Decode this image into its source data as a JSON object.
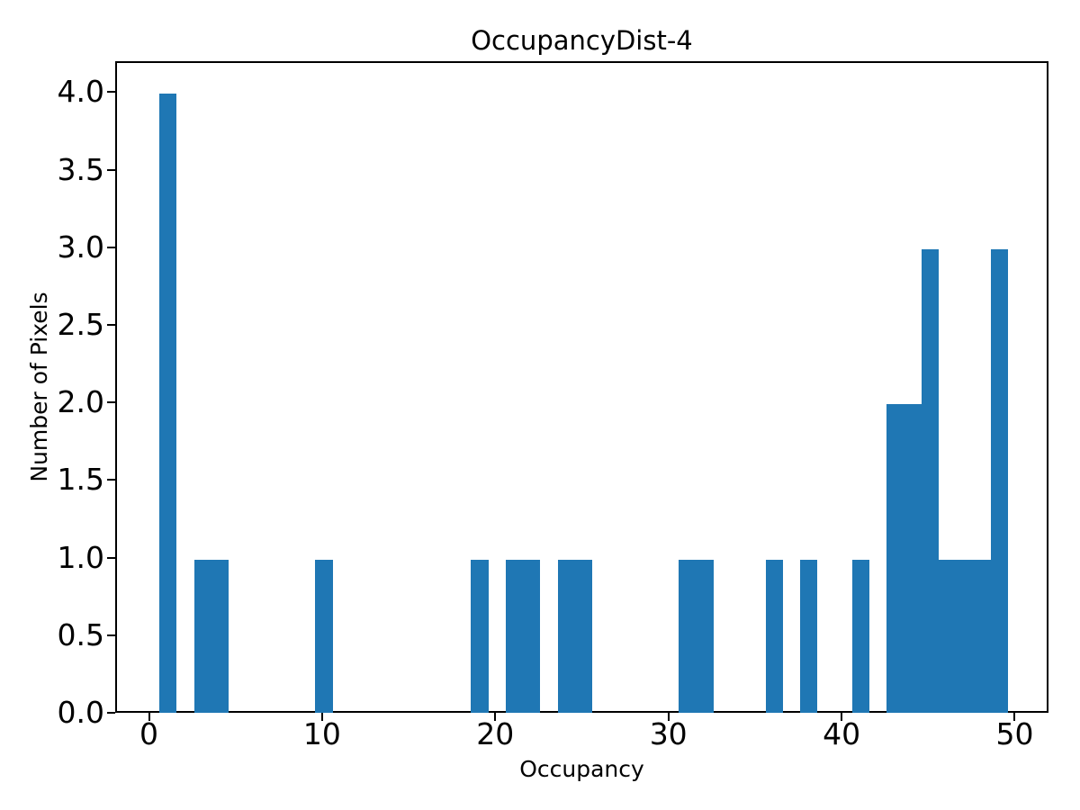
{
  "chart_data": {
    "type": "bar",
    "subtype": "histogram",
    "title": "OccupancyDist-4",
    "xlabel": "Occupancy",
    "ylabel": "Number of Pixels",
    "xlim": [
      -1.95,
      51.95
    ],
    "ylim": [
      0,
      4.2
    ],
    "grid": false,
    "legend": "none",
    "bar_color": "#1f77b4",
    "axis_color": "#000000",
    "background_color": "#ffffff",
    "xticks": [
      {
        "value": 0,
        "label": "0"
      },
      {
        "value": 10,
        "label": "10"
      },
      {
        "value": 20,
        "label": "20"
      },
      {
        "value": 30,
        "label": "30"
      },
      {
        "value": 40,
        "label": "40"
      },
      {
        "value": 50,
        "label": "50"
      }
    ],
    "yticks": [
      {
        "value": 0.0,
        "label": "0.0"
      },
      {
        "value": 0.5,
        "label": "0.5"
      },
      {
        "value": 1.0,
        "label": "1.0"
      },
      {
        "value": 1.5,
        "label": "1.5"
      },
      {
        "value": 2.0,
        "label": "2.0"
      },
      {
        "value": 2.5,
        "label": "2.5"
      },
      {
        "value": 3.0,
        "label": "3.0"
      },
      {
        "value": 3.5,
        "label": "3.5"
      },
      {
        "value": 4.0,
        "label": "4.0"
      }
    ],
    "bins": [
      {
        "x0": 0.5,
        "x1": 1.5,
        "count": 4
      },
      {
        "x0": 2.5,
        "x1": 3.5,
        "count": 1
      },
      {
        "x0": 3.5,
        "x1": 4.5,
        "count": 1
      },
      {
        "x0": 9.5,
        "x1": 10.5,
        "count": 1
      },
      {
        "x0": 18.5,
        "x1": 19.5,
        "count": 1
      },
      {
        "x0": 20.5,
        "x1": 21.5,
        "count": 1
      },
      {
        "x0": 21.5,
        "x1": 22.5,
        "count": 1
      },
      {
        "x0": 23.5,
        "x1": 24.5,
        "count": 1
      },
      {
        "x0": 24.5,
        "x1": 25.5,
        "count": 1
      },
      {
        "x0": 30.5,
        "x1": 31.5,
        "count": 1
      },
      {
        "x0": 31.5,
        "x1": 32.5,
        "count": 1
      },
      {
        "x0": 35.5,
        "x1": 36.5,
        "count": 1
      },
      {
        "x0": 37.5,
        "x1": 38.5,
        "count": 1
      },
      {
        "x0": 40.5,
        "x1": 41.5,
        "count": 1
      },
      {
        "x0": 42.5,
        "x1": 43.5,
        "count": 2
      },
      {
        "x0": 43.5,
        "x1": 44.5,
        "count": 2
      },
      {
        "x0": 44.5,
        "x1": 45.5,
        "count": 3
      },
      {
        "x0": 45.5,
        "x1": 46.5,
        "count": 1
      },
      {
        "x0": 46.5,
        "x1": 47.5,
        "count": 1
      },
      {
        "x0": 47.5,
        "x1": 48.5,
        "count": 1
      },
      {
        "x0": 48.5,
        "x1": 49.5,
        "count": 3
      }
    ]
  }
}
